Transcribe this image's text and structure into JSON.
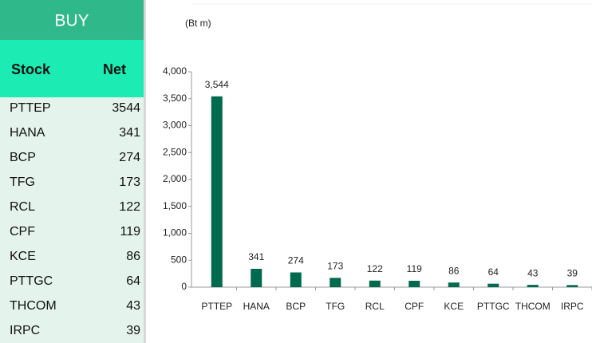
{
  "table": {
    "title": "BUY",
    "header": [
      "Stock",
      "Net"
    ],
    "rows": [
      [
        "PTTEP",
        "3544"
      ],
      [
        "HANA",
        "341"
      ],
      [
        "BCP",
        "274"
      ],
      [
        "TFG",
        "173"
      ],
      [
        "RCL",
        "122"
      ],
      [
        "CPF",
        "119"
      ],
      [
        "KCE",
        "86"
      ],
      [
        "PTTGC",
        "64"
      ],
      [
        "THCOM",
        "43"
      ],
      [
        "IRPC",
        "39"
      ]
    ]
  },
  "chart_data": {
    "type": "bar",
    "axis_label": "(Bt m)",
    "categories": [
      "PTTEP",
      "HANA",
      "BCP",
      "TFG",
      "RCL",
      "CPF",
      "KCE",
      "PTTGC",
      "THCOM",
      "IRPC"
    ],
    "values": [
      3544,
      341,
      274,
      173,
      122,
      119,
      86,
      64,
      43,
      39
    ],
    "value_labels": [
      "3,544",
      "341",
      "274",
      "173",
      "122",
      "119",
      "86",
      "64",
      "43",
      "39"
    ],
    "color": "#006a4e",
    "ylim": [
      0,
      4000
    ],
    "yticks": [
      0,
      500,
      {
        "value": 1000,
        "label": "1,000"
      },
      {
        "value": 1500,
        "label": "1,500"
      },
      {
        "value": 2000,
        "label": "2,000"
      },
      {
        "value": 2500,
        "label": "2,500"
      },
      {
        "value": 3000,
        "label": "3,000"
      },
      {
        "value": 3500,
        "label": "3,500"
      },
      {
        "value": 4000,
        "label": "4,000"
      }
    ],
    "grid": false
  }
}
